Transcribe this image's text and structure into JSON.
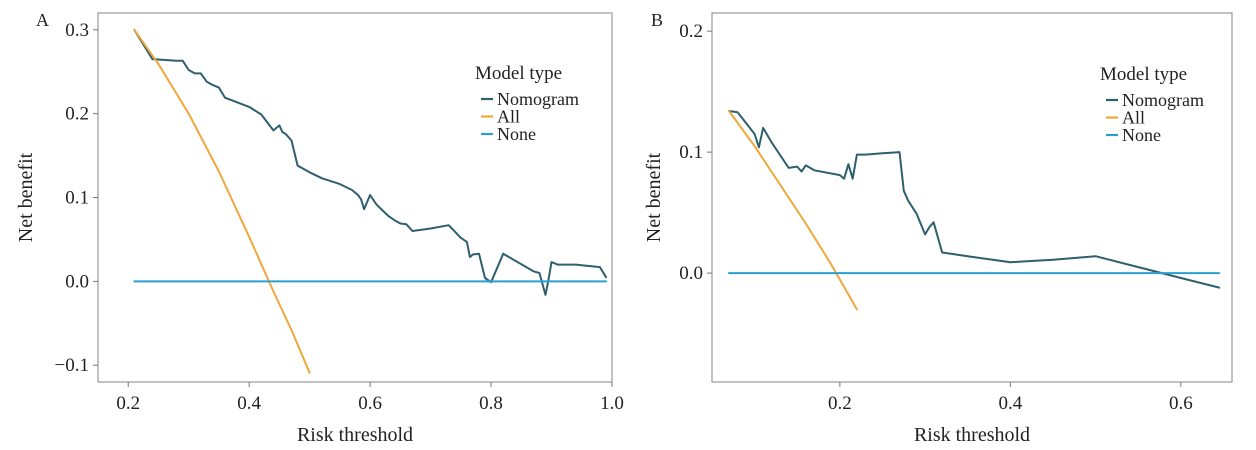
{
  "chart_data": [
    {
      "type": "line",
      "panel_label": "A",
      "xlabel": "Risk threshold",
      "ylabel": "Net benefit",
      "xlim": [
        0.15,
        1.0
      ],
      "ylim": [
        -0.12,
        0.32
      ],
      "xticks": [
        0.2,
        0.4,
        0.6,
        0.8,
        1.0
      ],
      "xtick_labels": [
        "0.2",
        "0.4",
        "0.6",
        "0.8",
        "1.0"
      ],
      "yticks": [
        -0.1,
        0.0,
        0.1,
        0.2,
        0.3
      ],
      "ytick_labels": [
        "−0.1",
        "0.0",
        "0.1",
        "0.2",
        "0.3"
      ],
      "legend": {
        "title": "Model type",
        "placement": "top-right"
      },
      "series": [
        {
          "name": "Nomogram",
          "color": "#2e5f6e",
          "x": [
            0.21,
            0.24,
            0.28,
            0.29,
            0.3,
            0.31,
            0.32,
            0.33,
            0.34,
            0.35,
            0.36,
            0.4,
            0.42,
            0.44,
            0.45,
            0.455,
            0.46,
            0.47,
            0.48,
            0.5,
            0.52,
            0.55,
            0.57,
            0.58,
            0.585,
            0.59,
            0.6,
            0.61,
            0.62,
            0.63,
            0.64,
            0.65,
            0.66,
            0.67,
            0.7,
            0.73,
            0.75,
            0.76,
            0.765,
            0.77,
            0.78,
            0.79,
            0.8,
            0.82,
            0.87,
            0.88,
            0.89,
            0.895,
            0.9,
            0.91,
            0.94,
            0.98,
            0.99
          ],
          "y": [
            0.3,
            0.265,
            0.263,
            0.263,
            0.252,
            0.248,
            0.248,
            0.238,
            0.234,
            0.231,
            0.219,
            0.208,
            0.199,
            0.18,
            0.186,
            0.178,
            0.176,
            0.168,
            0.138,
            0.13,
            0.123,
            0.116,
            0.109,
            0.103,
            0.098,
            0.086,
            0.103,
            0.092,
            0.085,
            0.078,
            0.073,
            0.069,
            0.068,
            0.06,
            0.063,
            0.067,
            0.052,
            0.047,
            0.029,
            0.032,
            0.033,
            0.004,
            -0.001,
            0.033,
            0.012,
            0.01,
            -0.016,
            0.002,
            0.023,
            0.02,
            0.02,
            0.017,
            0.005
          ]
        },
        {
          "name": "All",
          "color": "#f0a73c",
          "x": [
            0.21,
            0.25,
            0.3,
            0.35,
            0.4,
            0.44,
            0.47,
            0.5
          ],
          "y": [
            0.3,
            0.259,
            0.2,
            0.131,
            0.053,
            -0.012,
            -0.058,
            -0.109
          ]
        },
        {
          "name": "None",
          "color": "#2b9fcf",
          "x": [
            0.21,
            0.99
          ],
          "y": [
            0.0,
            0.0
          ]
        }
      ]
    },
    {
      "type": "line",
      "panel_label": "B",
      "xlabel": "Risk threshold",
      "ylabel": "Net benefit",
      "xlim": [
        0.05,
        0.66
      ],
      "ylim": [
        -0.09,
        0.215
      ],
      "xticks": [
        0.2,
        0.4,
        0.6
      ],
      "xtick_labels": [
        "0.2",
        "0.4",
        "0.6"
      ],
      "yticks": [
        0.0,
        0.1,
        0.2
      ],
      "ytick_labels": [
        "0.0",
        "0.1",
        "0.2"
      ],
      "legend": {
        "title": "Model type",
        "placement": "top-right"
      },
      "series": [
        {
          "name": "Nomogram",
          "color": "#2e5f6e",
          "x": [
            0.07,
            0.08,
            0.09,
            0.1,
            0.105,
            0.11,
            0.12,
            0.14,
            0.15,
            0.155,
            0.16,
            0.17,
            0.2,
            0.205,
            0.21,
            0.215,
            0.22,
            0.23,
            0.25,
            0.27,
            0.275,
            0.28,
            0.29,
            0.3,
            0.305,
            0.31,
            0.32,
            0.35,
            0.4,
            0.45,
            0.5,
            0.55,
            0.6,
            0.645
          ],
          "y": [
            0.134,
            0.133,
            0.124,
            0.115,
            0.104,
            0.12,
            0.108,
            0.087,
            0.088,
            0.084,
            0.089,
            0.085,
            0.081,
            0.078,
            0.09,
            0.078,
            0.098,
            0.098,
            0.099,
            0.1,
            0.068,
            0.06,
            0.049,
            0.032,
            0.038,
            0.042,
            0.017,
            0.014,
            0.009,
            0.011,
            0.014,
            0.005,
            -0.004,
            -0.012
          ]
        },
        {
          "name": "All",
          "color": "#f0a73c",
          "x": [
            0.07,
            0.1,
            0.13,
            0.16,
            0.19,
            0.22
          ],
          "y": [
            0.134,
            0.105,
            0.073,
            0.041,
            0.007,
            -0.03
          ]
        },
        {
          "name": "None",
          "color": "#2b9fcf",
          "x": [
            0.07,
            0.645
          ],
          "y": [
            0.0,
            0.0
          ]
        }
      ]
    }
  ]
}
